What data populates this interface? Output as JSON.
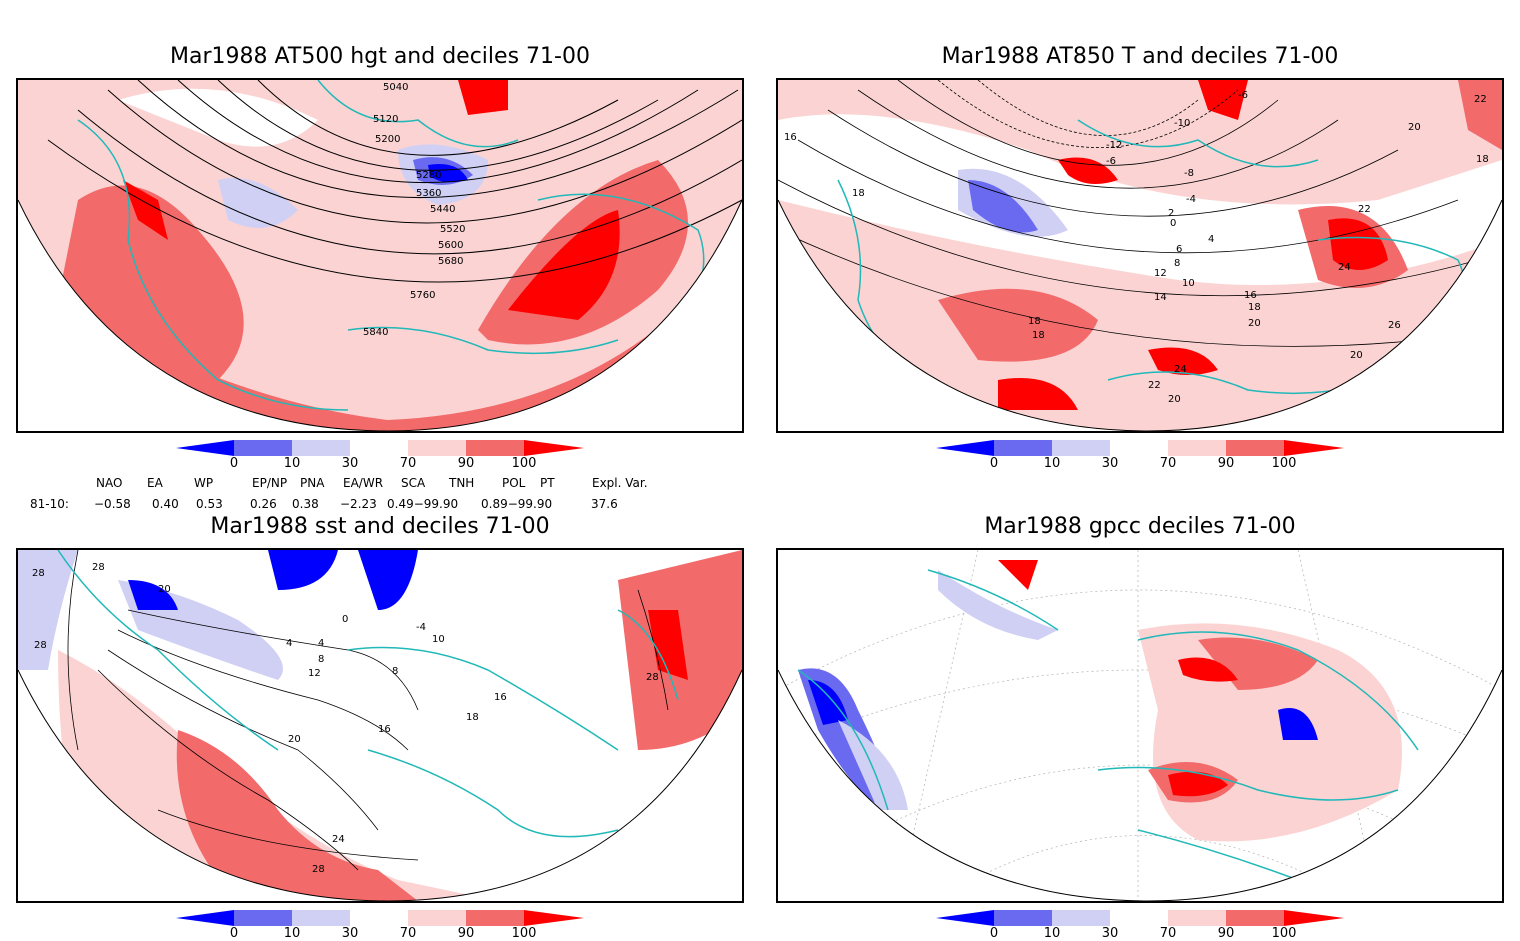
{
  "panels": {
    "z500": {
      "title": "Mar1988 AT500 hgt and deciles 71-00",
      "contour_labels": [
        "5040",
        "5120",
        "5200",
        "5280",
        "5360",
        "5440",
        "5520",
        "5600",
        "5680",
        "5760",
        "5840"
      ]
    },
    "t850": {
      "title": "Mar1988 AT850 T and deciles 71-00",
      "contour_labels": [
        "-6",
        "-10",
        "-12",
        "-8",
        "-6",
        "-4",
        "0",
        "2",
        "4",
        "6",
        "8",
        "10",
        "12",
        "14",
        "16",
        "18",
        "20",
        "22",
        "24",
        "26",
        "16",
        "18",
        "18",
        "18",
        "20",
        "22",
        "24",
        "20",
        "20",
        "22",
        "18"
      ]
    },
    "sst": {
      "title": "Mar1988 sst and deciles 71-00",
      "contour_labels": [
        "28",
        "28",
        "28",
        "20",
        "0",
        "-4",
        "4",
        "8",
        "12",
        "16",
        "16",
        "18",
        "20",
        "24",
        "28",
        "28",
        "10",
        "8",
        "4"
      ]
    },
    "gpcc": {
      "title": "Mar1988 gpcc deciles 71-00",
      "contour_labels": []
    }
  },
  "colorbar": {
    "ticks": [
      "0",
      "10",
      "30",
      "70",
      "90",
      "100"
    ],
    "colors": [
      "#0000ff",
      "#6a6af0",
      "#d0d0f5",
      "#ffffff",
      "#fbd3d3",
      "#f26a6a",
      "#ff0000"
    ]
  },
  "indices": {
    "headers": [
      "NAO",
      "EA",
      "WP",
      "EP/NP",
      "PNA",
      "EA/WR",
      "SCA",
      "TNH",
      "POL",
      "PT",
      "Expl. Var."
    ],
    "row_label": "81-10:",
    "values": [
      "−0.58",
      "0.40",
      "0.53",
      "0.26",
      "0.38",
      "−2.23",
      "0.49−99.90",
      "0.89−99.90",
      "37.6"
    ]
  },
  "colors": {
    "coast": "#20b8b8",
    "dark_red": "#ff0000",
    "mid_red": "#f26a6a",
    "light_red": "#fbd3d3",
    "light_blue": "#d0d0f5",
    "mid_blue": "#6a6af0",
    "dark_blue": "#0000ff"
  }
}
